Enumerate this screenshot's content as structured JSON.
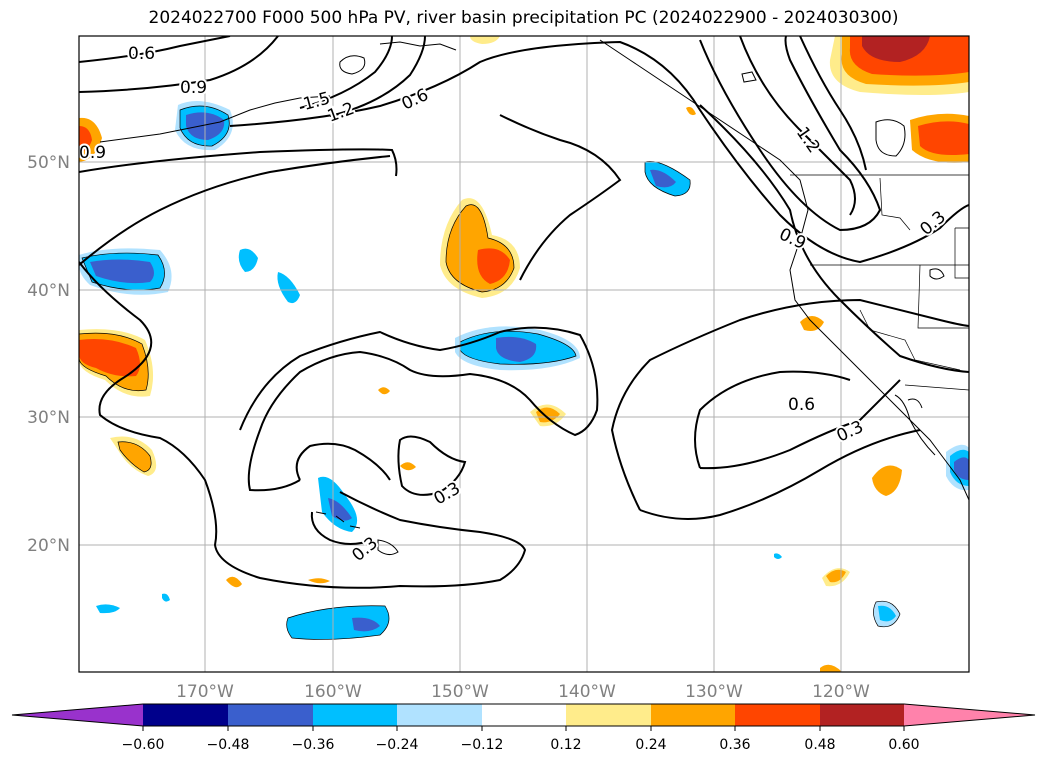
{
  "title": "2024022700 F000 500 hPa PV, river basin precipitation PC (2024022900 - 2024030300)",
  "lat_labels": [
    "50°N",
    "40°N",
    "30°N",
    "20°N"
  ],
  "lon_labels": [
    "170°W",
    "160°W",
    "150°W",
    "140°W",
    "130°W",
    "120°W"
  ],
  "contour_labels": [
    "0.6",
    "0.9",
    "1.5",
    "1.2",
    "0.6",
    "0.9",
    "1.2",
    "0.9",
    "0.3",
    "0.6",
    "0.3",
    "0.3",
    "0.3"
  ],
  "colorbar": {
    "ticks": [
      "−0.60",
      "−0.48",
      "−0.36",
      "−0.24",
      "−0.12",
      "0.12",
      "0.24",
      "0.36",
      "0.48",
      "0.60"
    ],
    "colors": [
      "#9932cc",
      "#00008b",
      "#3a5fcd",
      "#00bfff",
      "#b0e2ff",
      "#ffffff",
      "#ffec8b",
      "#ffa500",
      "#ff4500",
      "#b22222",
      "#ff82ab"
    ]
  }
}
